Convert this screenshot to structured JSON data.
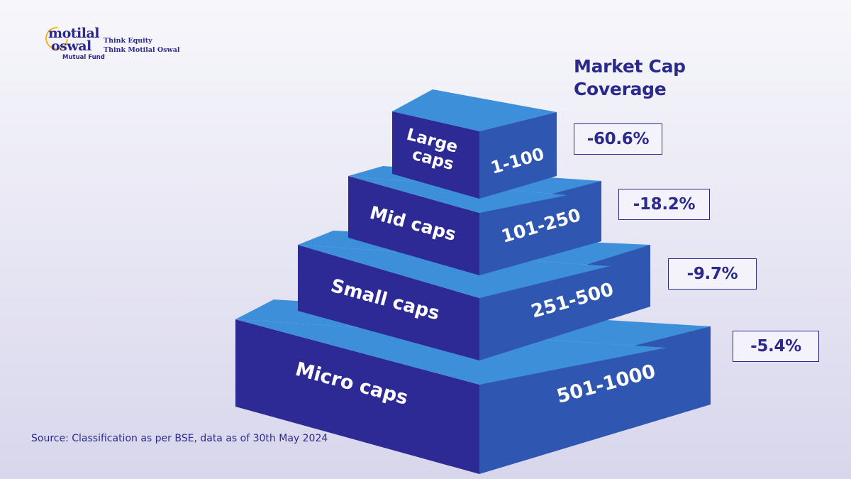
{
  "brand": {
    "logo_line1": "motilal",
    "logo_line2": "oswal",
    "logo_sub": "Mutual Fund",
    "tagline_line1": "Think Equity",
    "tagline_line2": "Think Motilal Oswal"
  },
  "heading": {
    "line1": "Market Cap",
    "line2": "Coverage"
  },
  "tiers": [
    {
      "name_line1": "Large",
      "name_line2": "caps",
      "rank_range": "1-100",
      "coverage": "-60.6%"
    },
    {
      "name_line1": "Mid caps",
      "name_line2": "",
      "rank_range": "101-250",
      "coverage": "-18.2%"
    },
    {
      "name_line1": "Small caps",
      "name_line2": "",
      "rank_range": "251-500",
      "coverage": "-9.7%"
    },
    {
      "name_line1": "Micro caps",
      "name_line2": "",
      "rank_range": "501-1000",
      "coverage": "-5.4%"
    }
  ],
  "colors": {
    "top_face": "#3d8fd9",
    "front_face": "#2d2a96",
    "side_face": "#2f56b0",
    "text_dark": "#2b2a8c"
  },
  "source": "Source: Classification as per BSE, data as of 30th May 2024"
}
